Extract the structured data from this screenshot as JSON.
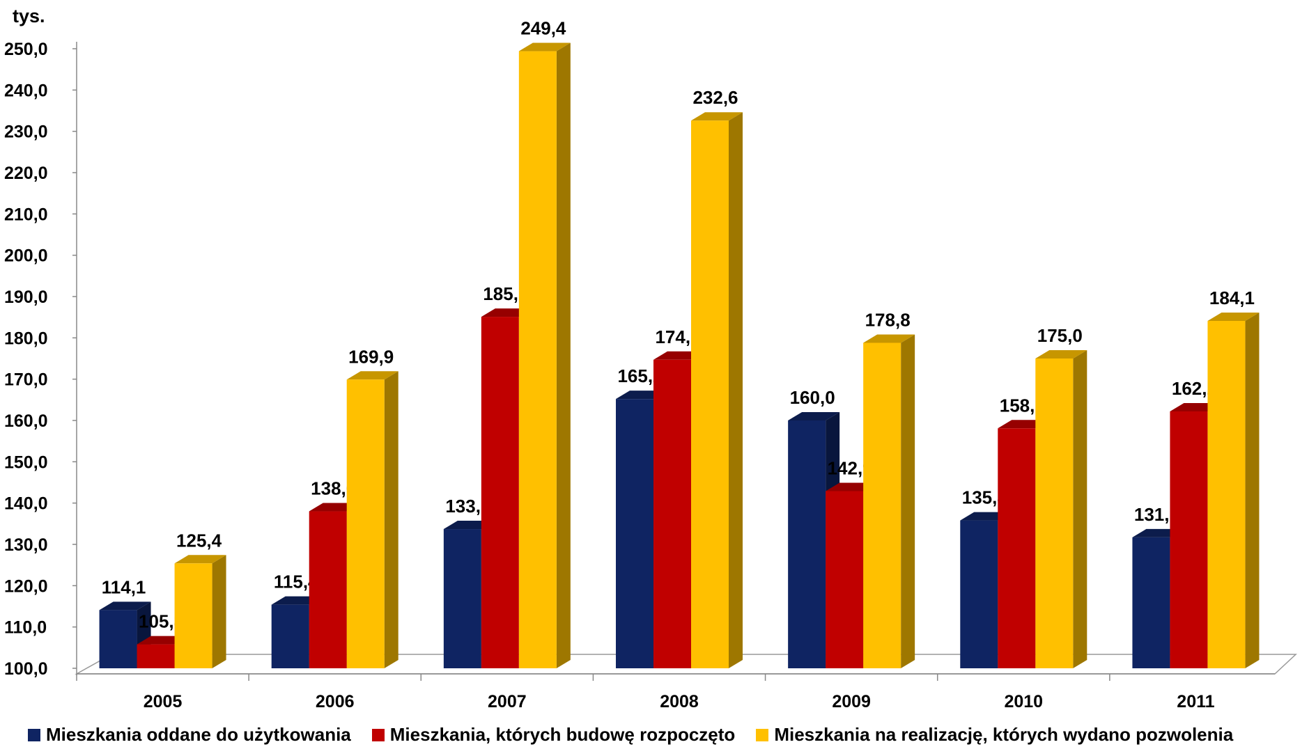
{
  "chart_data": {
    "type": "bar",
    "title": "",
    "unit_label": "tys.",
    "xlabel": "",
    "ylabel": "",
    "ylim": [
      100,
      250
    ],
    "yticks": [
      "100,0",
      "110,0",
      "120,0",
      "130,0",
      "140,0",
      "150,0",
      "160,0",
      "170,0",
      "180,0",
      "190,0",
      "200,0",
      "210,0",
      "220,0",
      "230,0",
      "240,0",
      "250,0"
    ],
    "categories": [
      "2005",
      "2006",
      "2007",
      "2008",
      "2009",
      "2010",
      "2011"
    ],
    "series": [
      {
        "name": "Mieszkania oddane do użytkowania",
        "color": "#0f2462",
        "values": [
          114.1,
          115.4,
          133.7,
          165.2,
          160.0,
          135.8,
          131.7
        ],
        "labels": [
          "114,1",
          "115,4",
          "133,7",
          "165,2",
          "160,0",
          "135,8",
          "131,7"
        ]
      },
      {
        "name": "Mieszkania, których budowę rozpoczęto",
        "color": "#c00000",
        "values": [
          105.8,
          138.0,
          185.1,
          174.7,
          142.9,
          158.1,
          162.2
        ],
        "labels": [
          "105,8",
          "138,0",
          "185,1",
          "174,7",
          "142,9",
          "158,1",
          "162,2"
        ]
      },
      {
        "name": "Mieszkania na realizację, których wydano pozwolenia",
        "color": "#ffc000",
        "values": [
          125.4,
          169.9,
          249.4,
          232.6,
          178.8,
          175.0,
          184.1
        ],
        "labels": [
          "125,4",
          "169,9",
          "249,4",
          "232,6",
          "178,8",
          "175,0",
          "184,1"
        ]
      }
    ],
    "grid": false,
    "legend_position": "bottom"
  }
}
